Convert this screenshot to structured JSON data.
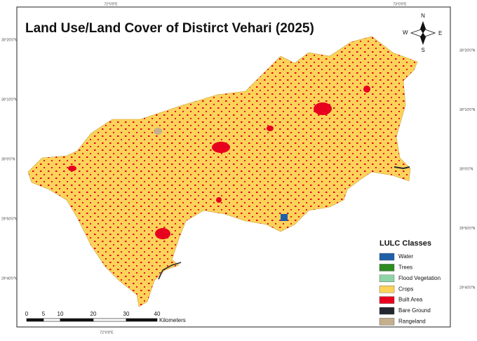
{
  "title": "Land Use/Land Cover of Distirct Vehari (2025)",
  "north_arrow": {
    "n": "N",
    "s": "S",
    "e": "E",
    "w": "W"
  },
  "coordinates": {
    "top": [
      "72°0'0\"E",
      "73°0'0\"E"
    ],
    "bottom": [
      "72°0'0\"E"
    ],
    "left": [
      "30°20'0\"N",
      "30°10'0\"N",
      "30°0'0\"N",
      "29°50'0\"N",
      "29°40'0\"N"
    ],
    "right": [
      "30°20'0\"N",
      "30°10'0\"N",
      "30°0'0\"N",
      "29°50'0\"N",
      "29°40'0\"N"
    ]
  },
  "legend": {
    "title": "LULC Classes",
    "items": [
      {
        "label": "Water",
        "color": "#1f5fa8"
      },
      {
        "label": "Trees",
        "color": "#2e8b22"
      },
      {
        "label": "Flood Vegetation",
        "color": "#8fd4a6"
      },
      {
        "label": "Crops",
        "color": "#fcd35a"
      },
      {
        "label": "Built Area",
        "color": "#e8001f"
      },
      {
        "label": "Bare Ground",
        "color": "#23262f"
      },
      {
        "label": "Rangeland",
        "color": "#c4ae8c"
      }
    ]
  },
  "scale_bar": {
    "labels": [
      "0",
      "5",
      "10",
      "20",
      "30",
      "40"
    ],
    "unit": "Kilometers"
  }
}
